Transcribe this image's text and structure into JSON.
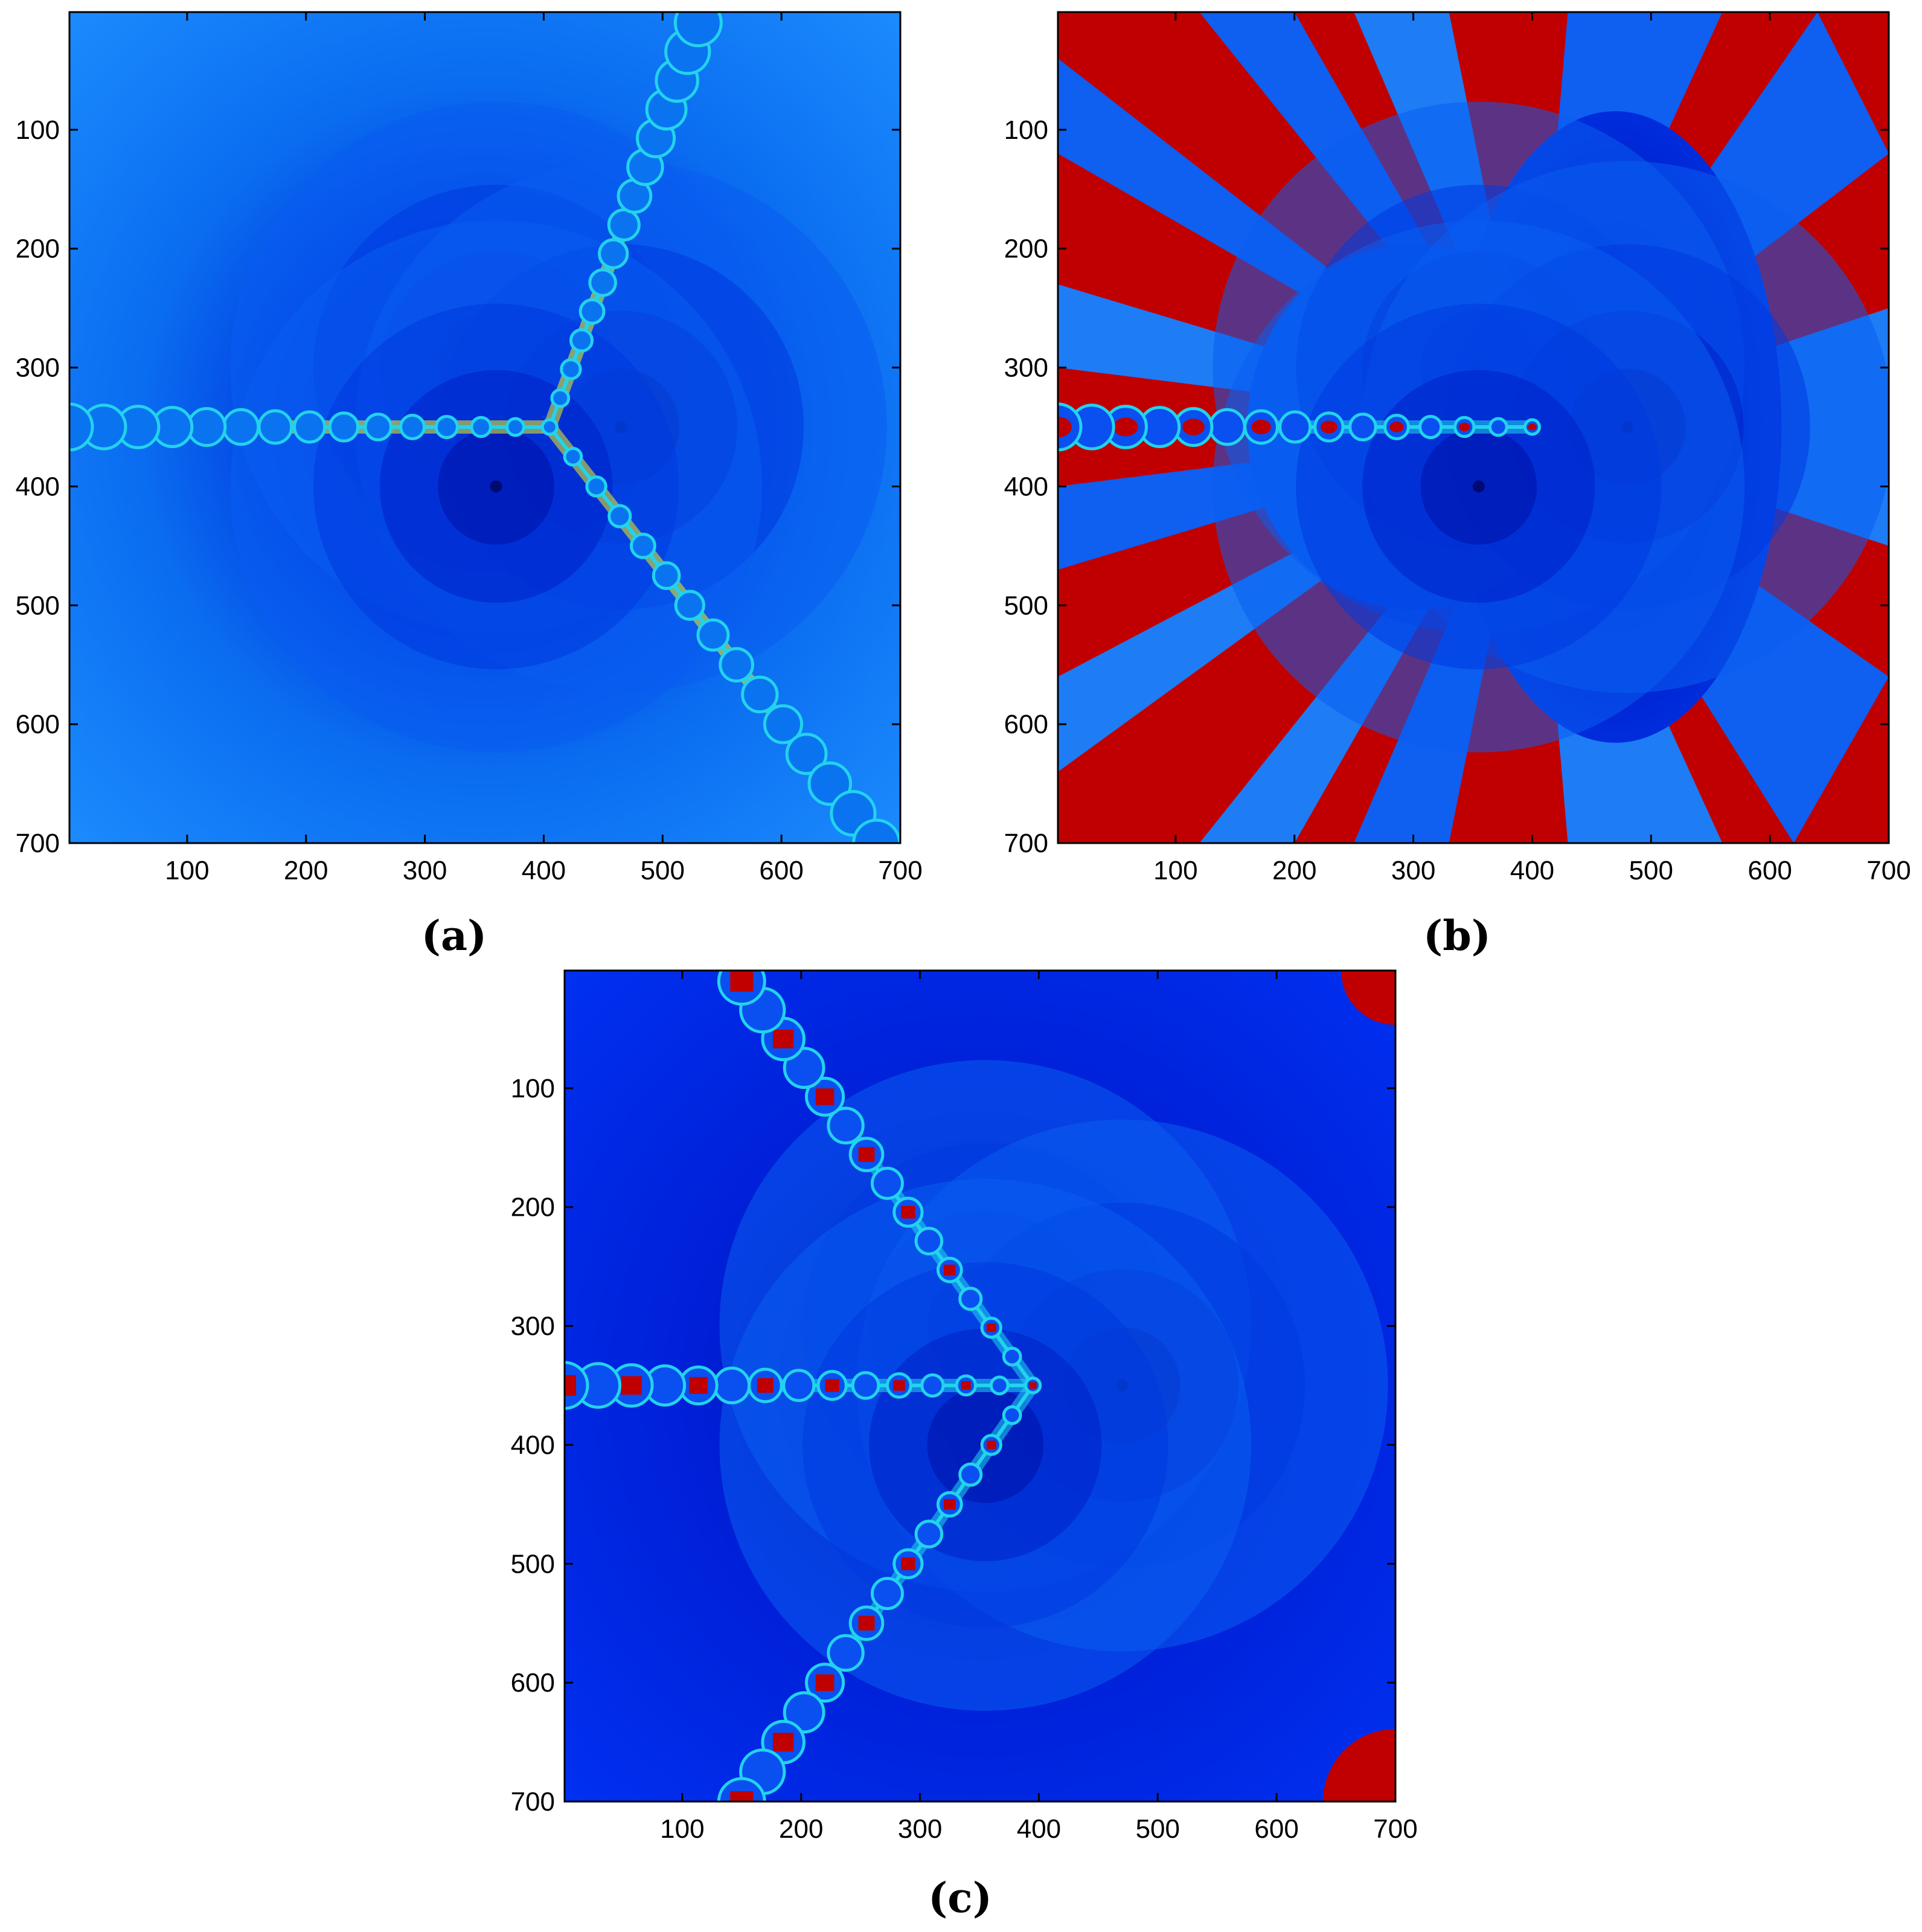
{
  "figure": {
    "panels": [
      {
        "id": "a",
        "caption": "(a)"
      },
      {
        "id": "b",
        "caption": "(b)"
      },
      {
        "id": "c",
        "caption": "(c)"
      }
    ]
  },
  "colors": {
    "basin_light": "#1e90ff",
    "basin_mid": "#0a6cf0",
    "basin_dark": "#0033dd",
    "basin_core": "#0010b0",
    "boundary_cyan": "#22d3ee",
    "boundary_yellow": "#f2f21a",
    "divergent_red": "#c00000"
  },
  "chart_data": [
    {
      "id": "a",
      "type": "heatmap",
      "caption": "(a)",
      "xlim": [
        1,
        700
      ],
      "ylim": [
        1,
        700
      ],
      "y_reversed": true,
      "xticks": [
        100,
        200,
        300,
        400,
        500,
        600,
        700
      ],
      "yticks": [
        100,
        200,
        300,
        400,
        500,
        600,
        700
      ],
      "grid": false,
      "attractor_centers": [
        [
          360,
          300
        ],
        [
          465,
          350
        ],
        [
          360,
          400
        ]
      ],
      "boundary_rays": [
        {
          "from": [
            405,
            350
          ],
          "to": [
            1,
            350
          ]
        },
        {
          "from": [
            405,
            350
          ],
          "to": [
            530,
            10
          ]
        },
        {
          "from": [
            405,
            350
          ],
          "to": [
            680,
            700
          ]
        }
      ],
      "divergent_region": "none"
    },
    {
      "id": "b",
      "type": "heatmap",
      "caption": "(b)",
      "xlim": [
        1,
        700
      ],
      "ylim": [
        1,
        700
      ],
      "y_reversed": true,
      "xticks": [
        100,
        200,
        300,
        400,
        500,
        600,
        700
      ],
      "yticks": [
        100,
        200,
        300,
        400,
        500,
        600,
        700
      ],
      "grid": false,
      "attractor_centers": [
        [
          355,
          300
        ],
        [
          480,
          350
        ],
        [
          355,
          400
        ]
      ],
      "boundary_rays": [
        {
          "from": [
            400,
            350
          ],
          "to": [
            1,
            350
          ]
        }
      ],
      "divergent_region": "large red exterior with fan-shaped blue basins"
    },
    {
      "id": "c",
      "type": "heatmap",
      "caption": "(c)",
      "xlim": [
        1,
        700
      ],
      "ylim": [
        1,
        700
      ],
      "y_reversed": true,
      "xticks": [
        100,
        200,
        300,
        400,
        500,
        600,
        700
      ],
      "yticks": [
        100,
        200,
        300,
        400,
        500,
        600,
        700
      ],
      "grid": false,
      "attractor_centers": [
        [
          355,
          300
        ],
        [
          470,
          350
        ],
        [
          355,
          400
        ]
      ],
      "boundary_rays": [
        {
          "from": [
            395,
            350
          ],
          "to": [
            1,
            350
          ]
        },
        {
          "from": [
            395,
            350
          ],
          "to": [
            150,
            10
          ]
        },
        {
          "from": [
            395,
            350
          ],
          "to": [
            150,
            700
          ]
        }
      ],
      "divergent_region": "small red patches at right corners"
    }
  ]
}
